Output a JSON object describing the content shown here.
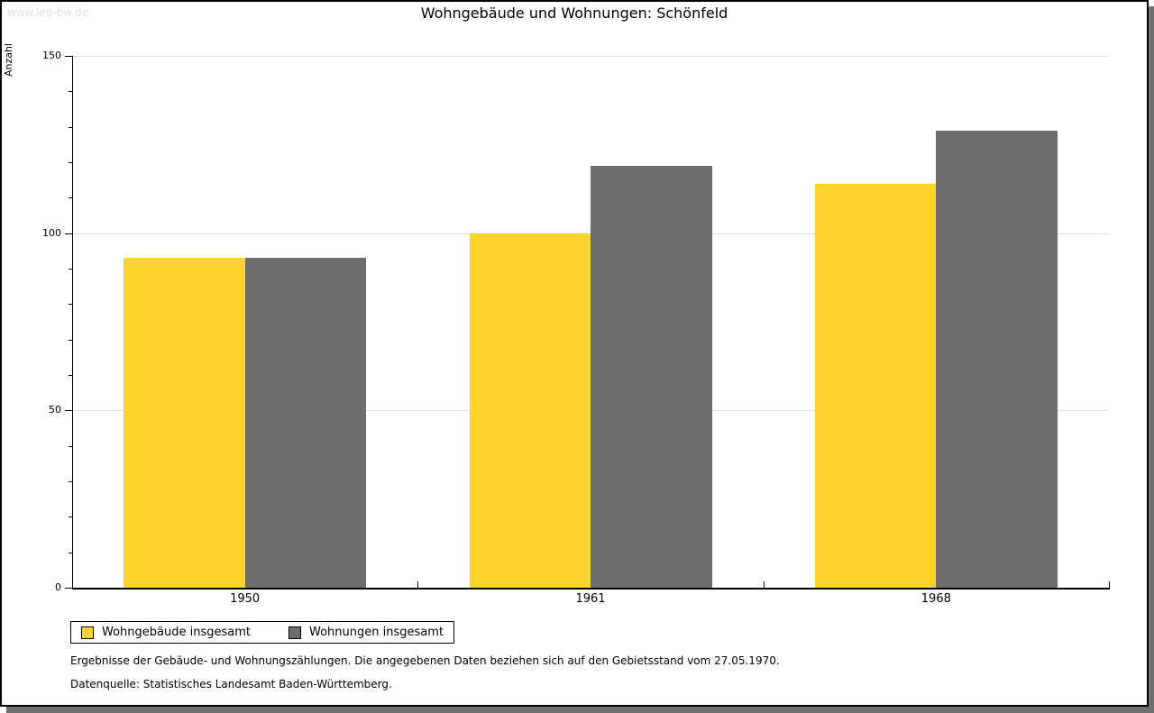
{
  "watermark": "www.leo-bw.de",
  "footnotes": [
    "Ergebnisse der Gebäude- und Wohnungszählungen. Die angegebenen Daten beziehen sich auf den Gebietsstand vom 27.05.1970.",
    "Datenquelle: Statistisches Landesamt Baden-Württemberg."
  ],
  "colors": {
    "bar_yellow": "#FCD42D",
    "bar_gray": "#6D6D6D",
    "grid": "#DEDEDE",
    "shadow": "#6F6F6F",
    "watermark_text": "#DCDCDC",
    "axis": "#000000"
  },
  "chart_data": {
    "type": "bar",
    "title": "Wohngebäude und Wohnungen: Schönfeld",
    "xlabel": "",
    "ylabel": "Anzahl",
    "categories": [
      "1950",
      "1961",
      "1968"
    ],
    "series": [
      {
        "key": "wohngebaeude",
        "name": "Wohngebäude insgesamt",
        "color": "#FCD42D",
        "values": [
          93,
          100,
          114
        ]
      },
      {
        "key": "wohnungen",
        "name": "Wohnungen insgesamt",
        "color": "#6D6D6D",
        "values": [
          93,
          119,
          129
        ]
      }
    ],
    "ylim": [
      0,
      150
    ],
    "y_major_ticks": [
      0,
      50,
      100,
      150
    ],
    "y_minor_step": 10,
    "grid": true,
    "legend_position": "bottom-left"
  }
}
